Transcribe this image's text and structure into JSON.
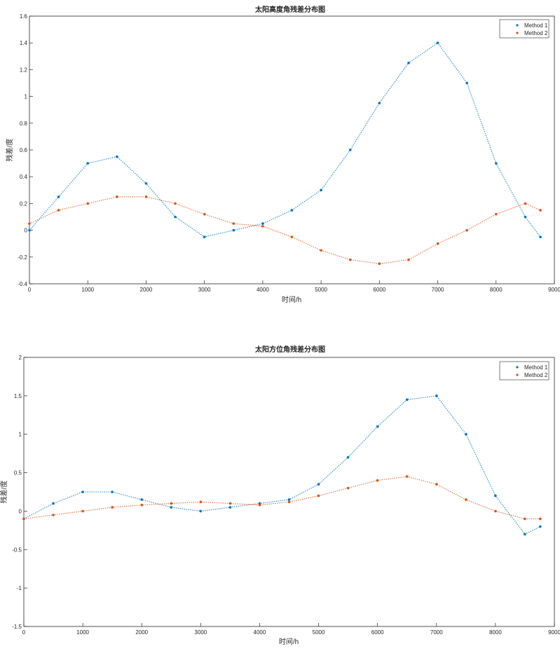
{
  "chart_data": [
    {
      "type": "scatter",
      "title": "太阳高度角残差分布图",
      "xlabel": "时间/h",
      "ylabel": "残差/度",
      "xlim": [
        0,
        9000
      ],
      "ylim": [
        -0.4,
        1.6
      ],
      "xticks": [
        0,
        1000,
        2000,
        3000,
        4000,
        5000,
        6000,
        7000,
        8000,
        9000
      ],
      "yticks": [
        -0.4,
        -0.2,
        0,
        0.2,
        0.4,
        0.6,
        0.8,
        1,
        1.2,
        1.4,
        1.6
      ],
      "xtick_labels": [
        "0",
        "1000",
        "2000",
        "3000",
        "4000",
        "5000",
        "6000",
        "7000",
        "8000",
        "9000"
      ],
      "ytick_labels": [
        "-0.4",
        "-0.2",
        "0",
        "0.2",
        "0.4",
        "0.6",
        "0.8",
        "1",
        "1.2",
        "1.4",
        "1.6"
      ],
      "grid": false,
      "legend_position": "top-right",
      "series": [
        {
          "name": "Method 1",
          "color": "#0072BD",
          "x": [
            0,
            500,
            1000,
            1500,
            2000,
            2500,
            3000,
            3500,
            4000,
            4500,
            5000,
            5500,
            6000,
            6500,
            7000,
            7500,
            8000,
            8500,
            8760
          ],
          "y": [
            0.0,
            0.25,
            0.5,
            0.55,
            0.35,
            0.1,
            -0.05,
            0.0,
            0.05,
            0.15,
            0.3,
            0.6,
            0.95,
            1.25,
            1.4,
            1.1,
            0.5,
            0.1,
            -0.05
          ]
        },
        {
          "name": "Method 2",
          "color": "#D95319",
          "x": [
            0,
            500,
            1000,
            1500,
            2000,
            2500,
            3000,
            3500,
            4000,
            4500,
            5000,
            5500,
            6000,
            6500,
            7000,
            7500,
            8000,
            8500,
            8760
          ],
          "y": [
            0.05,
            0.15,
            0.2,
            0.25,
            0.25,
            0.2,
            0.12,
            0.05,
            0.03,
            -0.05,
            -0.15,
            -0.22,
            -0.25,
            -0.22,
            -0.1,
            0.0,
            0.12,
            0.2,
            0.15
          ]
        }
      ]
    },
    {
      "type": "scatter",
      "title": "太阳方位角残差分布图",
      "xlabel": "时间/h",
      "ylabel": "残差/度",
      "xlim": [
        0,
        9000
      ],
      "ylim": [
        -1.5,
        2
      ],
      "xticks": [
        0,
        1000,
        2000,
        3000,
        4000,
        5000,
        6000,
        7000,
        8000,
        9000
      ],
      "yticks": [
        -1.5,
        -1,
        -0.5,
        0,
        0.5,
        1,
        1.5,
        2
      ],
      "xtick_labels": [
        "0",
        "1000",
        "2000",
        "3000",
        "4000",
        "5000",
        "6000",
        "7000",
        "8000",
        "9000"
      ],
      "ytick_labels": [
        "-1.5",
        "-1",
        "-0.5",
        "0",
        "0.5",
        "1",
        "1.5",
        "2"
      ],
      "grid": false,
      "legend_position": "top-right",
      "series": [
        {
          "name": "Method 1",
          "color": "#0072BD",
          "x": [
            0,
            500,
            1000,
            1500,
            2000,
            2500,
            3000,
            3500,
            4000,
            4500,
            5000,
            5500,
            6000,
            6500,
            7000,
            7500,
            8000,
            8500,
            8760
          ],
          "y": [
            -0.1,
            0.1,
            0.25,
            0.25,
            0.15,
            0.05,
            0.0,
            0.05,
            0.1,
            0.15,
            0.35,
            0.7,
            1.1,
            1.45,
            1.5,
            1.0,
            0.2,
            -0.3,
            -0.2
          ]
        },
        {
          "name": "Method 2",
          "color": "#D95319",
          "x": [
            0,
            500,
            1000,
            1500,
            2000,
            2500,
            3000,
            3500,
            4000,
            4500,
            5000,
            5500,
            6000,
            6500,
            7000,
            7500,
            8000,
            8500,
            8760
          ],
          "y": [
            -0.1,
            -0.05,
            0.0,
            0.05,
            0.08,
            0.1,
            0.12,
            0.1,
            0.08,
            0.12,
            0.2,
            0.3,
            0.4,
            0.45,
            0.35,
            0.15,
            0.0,
            -0.1,
            -0.1
          ]
        }
      ]
    }
  ]
}
